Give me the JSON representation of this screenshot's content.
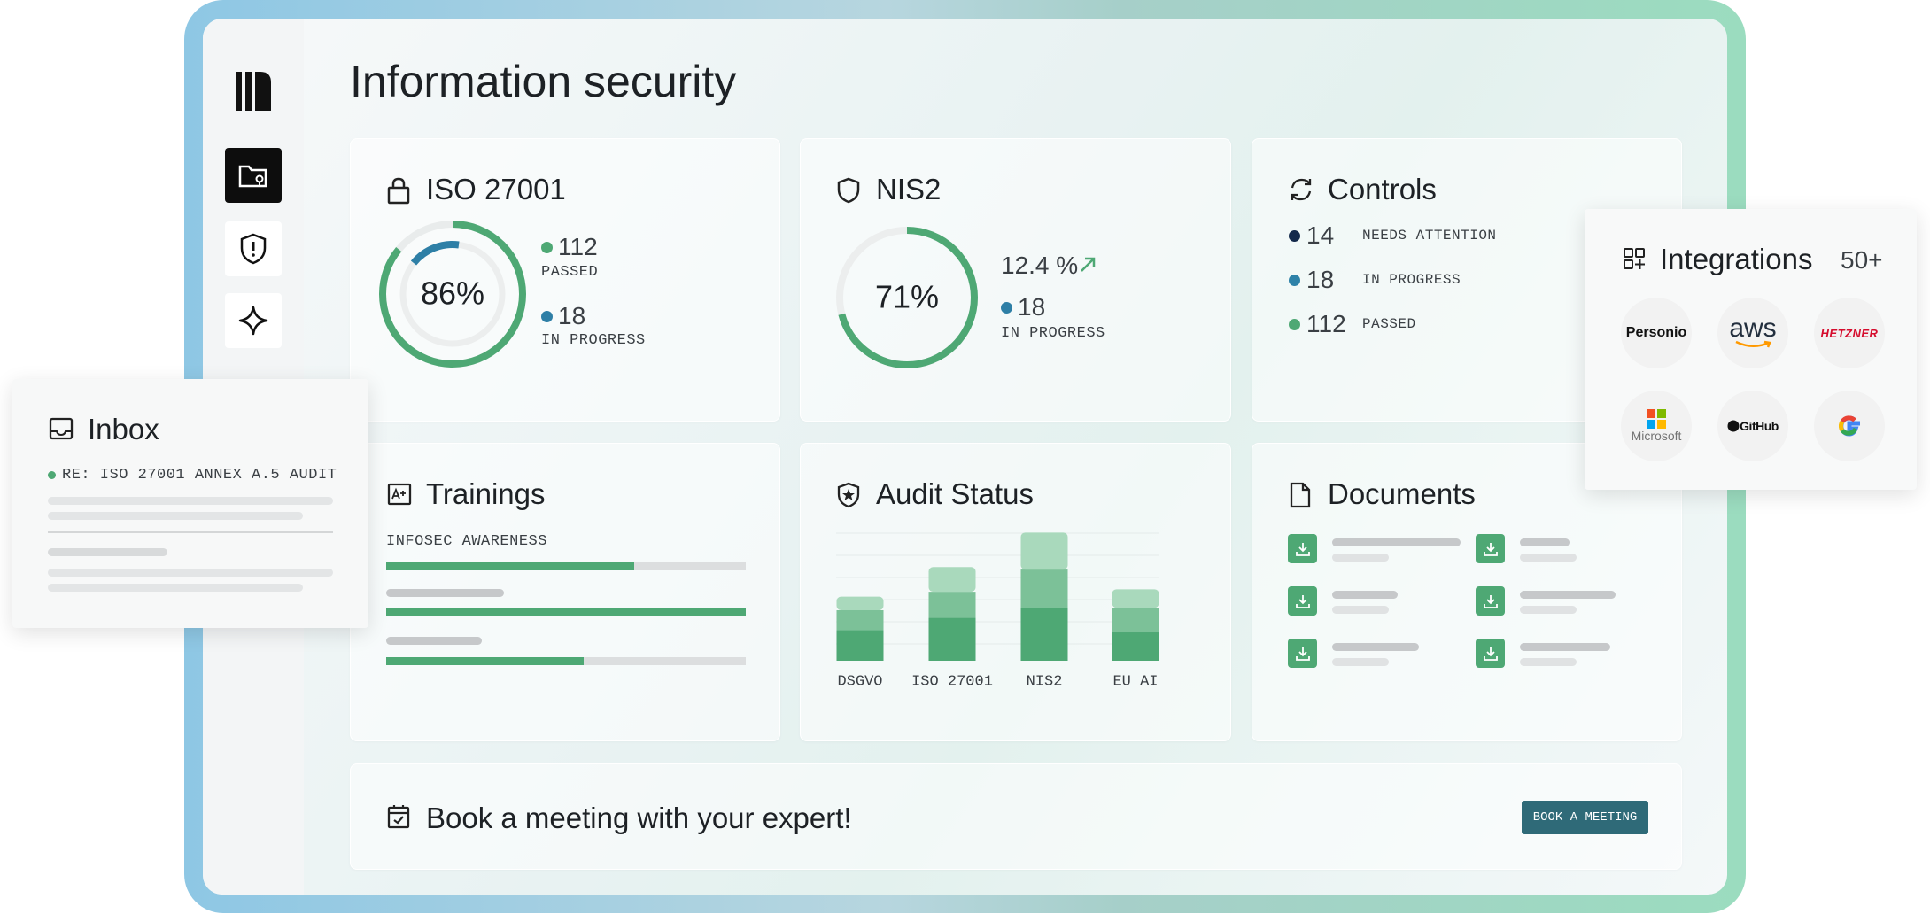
{
  "header": {
    "title": "Information security"
  },
  "iso27001": {
    "title": "ISO 27001",
    "percent": {
      "value": 86,
      "label": "86%"
    },
    "ring_color": "#4ea874",
    "passed": {
      "count": 112,
      "label": "PASSED"
    },
    "in_progress": {
      "count": 18,
      "label": "IN PROGRESS"
    }
  },
  "nis2": {
    "title": "NIS2",
    "percent": {
      "value": 71,
      "label": "71%"
    },
    "ring_color": "#4ea874",
    "trend": "12.4 %",
    "in_progress": {
      "count": 18,
      "label": "IN PROGRESS"
    }
  },
  "controls": {
    "title": "Controls",
    "rows": [
      {
        "count": 14,
        "label": "NEEDS ATTENTION",
        "color": "#13294b"
      },
      {
        "count": 18,
        "label": "IN PROGRESS",
        "color": "#2e82a8"
      },
      {
        "count": 112,
        "label": "PASSED",
        "color": "#4ea874"
      }
    ]
  },
  "trainings": {
    "title": "Trainings",
    "label": "INFOSEC AWARENESS",
    "progress": [
      69,
      100,
      55
    ],
    "color": "#4ea874"
  },
  "audit_status": {
    "title": "Audit Status",
    "categories": [
      "DSGVO",
      "ISO 27001",
      "NIS2",
      "EU AI"
    ],
    "series": [
      {
        "color": "#4ea874",
        "values": [
          25,
          35,
          43,
          23
        ]
      },
      {
        "color": "#7cc198",
        "values": [
          16,
          21,
          31,
          20
        ]
      },
      {
        "color": "#a9d9bc",
        "values": [
          11,
          20,
          30,
          15
        ]
      }
    ],
    "ylim": [
      0,
      110
    ]
  },
  "documents": {
    "title": "Documents"
  },
  "banner": {
    "text": "Book a meeting with your expert!",
    "button": "BOOK A MEETING"
  },
  "inbox": {
    "title": "Inbox",
    "message": "RE: ISO 27001 ANNEX A.5 AUDIT"
  },
  "integrations": {
    "title": "Integrations",
    "count": "50+",
    "logos": [
      "Personio",
      "aws",
      "HETZNER",
      "Microsoft",
      "GitHub"
    ]
  }
}
